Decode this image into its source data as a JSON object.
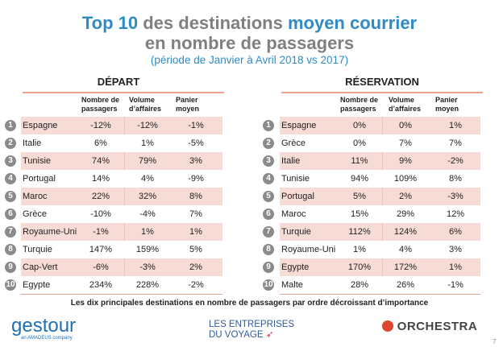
{
  "title": {
    "part1": "Top 10",
    "part2": " des destinations ",
    "part3": "moyen courrier",
    "line2": "en nombre de passagers",
    "subtitle": "(période de Janvier à Avril 2018 vs 2017)"
  },
  "columns": {
    "c1a": "Nombre de",
    "c1b": "passagers",
    "c2a": "Volume",
    "c2b": "d’affaires",
    "c3a": "Panier",
    "c3b": "moyen"
  },
  "depart": {
    "title": "DÉPART",
    "rows": [
      {
        "rank": "1",
        "country": "Espagne",
        "passagers": "-12%",
        "volume": "-12%",
        "panier": "-1%"
      },
      {
        "rank": "2",
        "country": "Italie",
        "passagers": "6%",
        "volume": "1%",
        "panier": "-5%"
      },
      {
        "rank": "3",
        "country": "Tunisie",
        "passagers": "74%",
        "volume": "79%",
        "panier": "3%"
      },
      {
        "rank": "4",
        "country": "Portugal",
        "passagers": "14%",
        "volume": "4%",
        "panier": "-9%"
      },
      {
        "rank": "5",
        "country": "Maroc",
        "passagers": "22%",
        "volume": "32%",
        "panier": "8%"
      },
      {
        "rank": "6",
        "country": "Grèce",
        "passagers": "-10%",
        "volume": "-4%",
        "panier": "7%"
      },
      {
        "rank": "7",
        "country": "Royaume-Uni",
        "passagers": "-1%",
        "volume": "1%",
        "panier": "1%"
      },
      {
        "rank": "8",
        "country": "Turquie",
        "passagers": "147%",
        "volume": "159%",
        "panier": "5%"
      },
      {
        "rank": "9",
        "country": "Cap-Vert",
        "passagers": "-6%",
        "volume": "-3%",
        "panier": "2%"
      },
      {
        "rank": "10",
        "country": "Egypte",
        "passagers": "234%",
        "volume": "228%",
        "panier": "-2%"
      }
    ]
  },
  "reservation": {
    "title": "RÉSERVATION",
    "rows": [
      {
        "rank": "1",
        "country": "Espagne",
        "passagers": "0%",
        "volume": "0%",
        "panier": "1%"
      },
      {
        "rank": "2",
        "country": "Grèce",
        "passagers": "0%",
        "volume": "7%",
        "panier": "7%"
      },
      {
        "rank": "3",
        "country": "Italie",
        "passagers": "11%",
        "volume": "9%",
        "panier": "-2%"
      },
      {
        "rank": "4",
        "country": "Tunisie",
        "passagers": "94%",
        "volume": "109%",
        "panier": "8%"
      },
      {
        "rank": "5",
        "country": "Portugal",
        "passagers": "5%",
        "volume": "2%",
        "panier": "-3%"
      },
      {
        "rank": "6",
        "country": "Maroc",
        "passagers": "15%",
        "volume": "29%",
        "panier": "12%"
      },
      {
        "rank": "7",
        "country": "Turquie",
        "passagers": "112%",
        "volume": "124%",
        "panier": "6%"
      },
      {
        "rank": "8",
        "country": "Royaume-Uni",
        "passagers": "1%",
        "volume": "4%",
        "panier": "3%"
      },
      {
        "rank": "9",
        "country": "Egypte",
        "passagers": "170%",
        "volume": "172%",
        "panier": "1%"
      },
      {
        "rank": "10",
        "country": "Malte",
        "passagers": "28%",
        "volume": "26%",
        "panier": "-1%"
      }
    ]
  },
  "caption": "Les dix principales destinations en nombre de passagers par ordre décroissant d’importance",
  "logos": {
    "gestour": "gestour",
    "gestour_sub": "an AMADEUS company",
    "edv1": "LES ENTREPRISES",
    "edv2": "DU VOYAGE",
    "orchestra": "ORCHESTRA"
  },
  "page_number": "7",
  "colors": {
    "accent": "#2f8bc3",
    "shade": "#f7dcd5",
    "rule": "#e9a28d",
    "orchestra": "#e0452f"
  }
}
